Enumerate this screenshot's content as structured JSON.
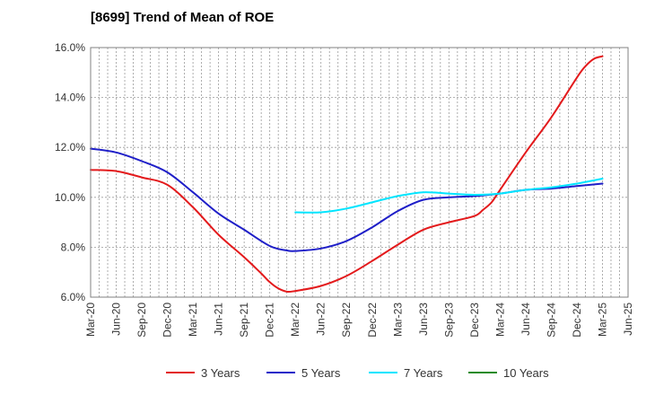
{
  "chart_data": {
    "type": "line",
    "title": "[8699]  Trend of Mean of ROE",
    "xlabel": "",
    "ylabel": "",
    "ylim": [
      6.0,
      16.0
    ],
    "y_ticks": [
      "6.0%",
      "8.0%",
      "10.0%",
      "12.0%",
      "14.0%",
      "16.0%"
    ],
    "x_ticks": [
      "Mar-20",
      "Jun-20",
      "Sep-20",
      "Dec-20",
      "Mar-21",
      "Jun-21",
      "Sep-21",
      "Dec-21",
      "Mar-22",
      "Jun-22",
      "Sep-22",
      "Dec-22",
      "Mar-23",
      "Jun-23",
      "Sep-23",
      "Dec-23",
      "Mar-24",
      "Jun-24",
      "Sep-24",
      "Dec-24",
      "Mar-25",
      "Jun-25"
    ],
    "grid": true,
    "legend_position": "bottom",
    "series": [
      {
        "name": "3 Years",
        "color": "#e31a1c",
        "points": [
          [
            "Mar-20",
            11.1
          ],
          [
            "Jun-20",
            11.05
          ],
          [
            "Sep-20",
            10.8
          ],
          [
            "Dec-20",
            10.5
          ],
          [
            "Mar-21",
            9.6
          ],
          [
            "Jun-21",
            8.5
          ],
          [
            "Sep-21",
            7.6
          ],
          [
            "Nov-21",
            6.95
          ],
          [
            "Dec-21",
            6.6
          ],
          [
            "Jan-22",
            6.35
          ],
          [
            "Feb-22",
            6.22
          ],
          [
            "Mar-22",
            6.25
          ],
          [
            "Jun-22",
            6.45
          ],
          [
            "Sep-22",
            6.85
          ],
          [
            "Dec-22",
            7.45
          ],
          [
            "Mar-23",
            8.1
          ],
          [
            "Jun-23",
            8.7
          ],
          [
            "Sep-23",
            9.0
          ],
          [
            "Dec-23",
            9.25
          ],
          [
            "Jan-24",
            9.5
          ],
          [
            "Feb-24",
            9.8
          ],
          [
            "Mar-24",
            10.3
          ],
          [
            "Jun-24",
            11.8
          ],
          [
            "Sep-24",
            13.2
          ],
          [
            "Dec-24",
            14.8
          ],
          [
            "Jan-25",
            15.25
          ],
          [
            "Feb-25",
            15.55
          ],
          [
            "Mar-25",
            15.65
          ]
        ]
      },
      {
        "name": "5 Years",
        "color": "#1f1fc8",
        "points": [
          [
            "Mar-20",
            11.95
          ],
          [
            "Jun-20",
            11.8
          ],
          [
            "Sep-20",
            11.45
          ],
          [
            "Dec-20",
            11.0
          ],
          [
            "Mar-21",
            10.2
          ],
          [
            "Jun-21",
            9.35
          ],
          [
            "Sep-21",
            8.7
          ],
          [
            "Dec-21",
            8.05
          ],
          [
            "Feb-22",
            7.87
          ],
          [
            "Mar-22",
            7.85
          ],
          [
            "Jun-22",
            7.95
          ],
          [
            "Sep-22",
            8.25
          ],
          [
            "Dec-22",
            8.8
          ],
          [
            "Mar-23",
            9.45
          ],
          [
            "Jun-23",
            9.9
          ],
          [
            "Sep-23",
            10.0
          ],
          [
            "Dec-23",
            10.05
          ],
          [
            "Mar-24",
            10.15
          ],
          [
            "Jun-24",
            10.3
          ],
          [
            "Sep-24",
            10.35
          ],
          [
            "Dec-24",
            10.45
          ],
          [
            "Mar-25",
            10.55
          ]
        ]
      },
      {
        "name": "7 Years",
        "color": "#00e5ff",
        "points": [
          [
            "Mar-22",
            9.4
          ],
          [
            "Jun-22",
            9.4
          ],
          [
            "Sep-22",
            9.55
          ],
          [
            "Dec-22",
            9.8
          ],
          [
            "Mar-23",
            10.05
          ],
          [
            "Jun-23",
            10.2
          ],
          [
            "Sep-23",
            10.15
          ],
          [
            "Dec-23",
            10.1
          ],
          [
            "Mar-24",
            10.15
          ],
          [
            "Jun-24",
            10.3
          ],
          [
            "Sep-24",
            10.4
          ],
          [
            "Dec-24",
            10.55
          ],
          [
            "Mar-25",
            10.75
          ]
        ]
      },
      {
        "name": "10 Years",
        "color": "#228b22",
        "points": []
      }
    ]
  }
}
